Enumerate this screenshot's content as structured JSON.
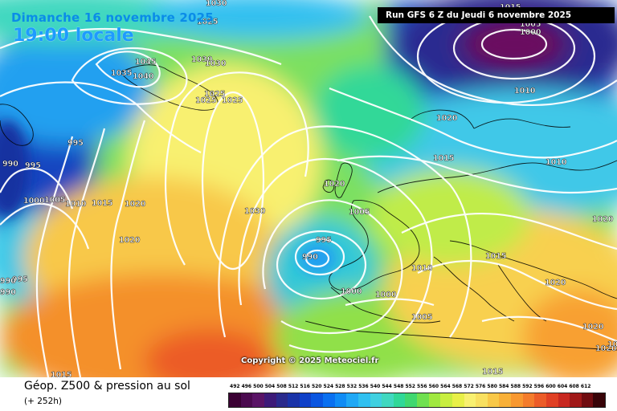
{
  "header": {
    "date": "Dimanche 16 novembre 2025",
    "local_time": "19:00 locale",
    "run": "Run GFS 6 Z du Jeudi 6 novembre 2025"
  },
  "map": {
    "copyright": "Copyright © 2025 Meteociel.fr",
    "pressure_labels": [
      {
        "text": "1030"
      },
      {
        "text": "1025"
      },
      {
        "text": "1045"
      },
      {
        "text": "1040"
      },
      {
        "text": "1035"
      },
      {
        "text": "1030"
      },
      {
        "text": "1030"
      },
      {
        "text": "1025"
      },
      {
        "text": "1025"
      },
      {
        "text": "1025"
      },
      {
        "text": "995"
      },
      {
        "text": "990"
      },
      {
        "text": "995"
      },
      {
        "text": "1000"
      },
      {
        "text": "1005"
      },
      {
        "text": "1010"
      },
      {
        "text": "1015"
      },
      {
        "text": "1020"
      },
      {
        "text": "1020"
      },
      {
        "text": "1030"
      },
      {
        "text": "995"
      },
      {
        "text": "990"
      },
      {
        "text": "990"
      },
      {
        "text": "1005"
      },
      {
        "text": "1020"
      },
      {
        "text": "995"
      },
      {
        "text": "990"
      },
      {
        "text": "1000"
      },
      {
        "text": "1000"
      },
      {
        "text": "1005"
      },
      {
        "text": "1010"
      },
      {
        "text": "1015"
      },
      {
        "text": "1020"
      },
      {
        "text": "1015"
      },
      {
        "text": "1010"
      },
      {
        "text": "1015"
      },
      {
        "text": "1005"
      },
      {
        "text": "1000"
      },
      {
        "text": "1010"
      },
      {
        "text": "1020"
      },
      {
        "text": "1020"
      },
      {
        "text": "1020"
      },
      {
        "text": "1020"
      },
      {
        "text": "1015"
      },
      {
        "text": "1015"
      },
      {
        "text": "1015"
      }
    ]
  },
  "legend": {
    "title": "Géop. Z500 & pression au sol",
    "lead": "(+ 252h)",
    "scale": [
      {
        "value": "492",
        "color": "#3a0033"
      },
      {
        "value": "496",
        "color": "#4b0a4f"
      },
      {
        "value": "500",
        "color": "#5a1466"
      },
      {
        "value": "504",
        "color": "#3d1a78"
      },
      {
        "value": "508",
        "color": "#2a2a8c"
      },
      {
        "value": "512",
        "color": "#1a33a8"
      },
      {
        "value": "516",
        "color": "#0f40c8"
      },
      {
        "value": "520",
        "color": "#0a55e0"
      },
      {
        "value": "524",
        "color": "#0a70f0"
      },
      {
        "value": "528",
        "color": "#108cf5"
      },
      {
        "value": "532",
        "color": "#20a8f5"
      },
      {
        "value": "536",
        "color": "#30c0f0"
      },
      {
        "value": "540",
        "color": "#40d0e0"
      },
      {
        "value": "544",
        "color": "#40d8c0"
      },
      {
        "value": "548",
        "color": "#30d898"
      },
      {
        "value": "552",
        "color": "#40d870"
      },
      {
        "value": "556",
        "color": "#70e050"
      },
      {
        "value": "560",
        "color": "#a0e840"
      },
      {
        "value": "564",
        "color": "#c8ee40"
      },
      {
        "value": "568",
        "color": "#e8f048"
      },
      {
        "value": "572",
        "color": "#f8f070"
      },
      {
        "value": "576",
        "color": "#f8e060"
      },
      {
        "value": "580",
        "color": "#f8c848"
      },
      {
        "value": "584",
        "color": "#f8b038"
      },
      {
        "value": "588",
        "color": "#f89830"
      },
      {
        "value": "592",
        "color": "#f47c2c"
      },
      {
        "value": "596",
        "color": "#ec5c28"
      },
      {
        "value": "600",
        "color": "#e04024"
      },
      {
        "value": "604",
        "color": "#c82820"
      },
      {
        "value": "608",
        "color": "#a01818"
      },
      {
        "value": "612",
        "color": "#700c10"
      },
      {
        "value": "",
        "color": "#380408"
      }
    ]
  }
}
